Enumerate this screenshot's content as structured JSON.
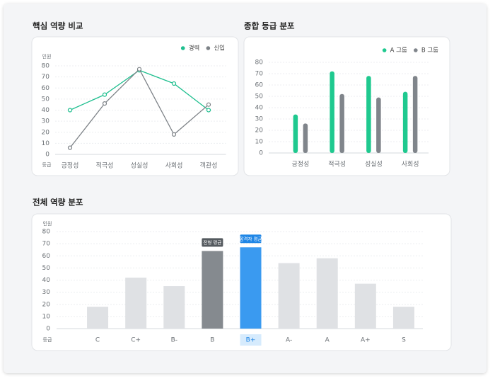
{
  "chart_data": [
    {
      "type": "line",
      "title": "핵심 역량 비교",
      "y_label": "인원",
      "x_label": "등급",
      "categories": [
        "긍정성",
        "적극성",
        "성실성",
        "사회성",
        "객관성"
      ],
      "series": [
        {
          "name": "경력",
          "color": "#1fbf8f",
          "values": [
            40,
            54,
            76,
            64,
            40
          ]
        },
        {
          "name": "신입",
          "color": "#7d8287",
          "values": [
            6,
            46,
            77,
            18,
            45
          ]
        }
      ],
      "ylim": [
        0,
        80
      ],
      "yticks": [
        0,
        10,
        20,
        30,
        40,
        50,
        60,
        70,
        80
      ],
      "grid": true,
      "legend": "top-right"
    },
    {
      "type": "bar",
      "title": "종합 등급 분포",
      "categories": [
        "긍정성",
        "적극성",
        "성실성",
        "사회성"
      ],
      "series": [
        {
          "name": "A 그룹",
          "color": "#1fc98f",
          "values": [
            34,
            72,
            68,
            54
          ]
        },
        {
          "name": "B 그룹",
          "color": "#80858b",
          "values": [
            26,
            52,
            49,
            68
          ]
        }
      ],
      "ylim": [
        0,
        80
      ],
      "yticks": [
        0,
        10,
        20,
        30,
        40,
        50,
        60,
        70,
        80
      ],
      "grid": true,
      "legend": "top-right"
    },
    {
      "type": "bar",
      "title": "전체 역량 분포",
      "y_label": "인원",
      "x_label": "등급",
      "categories": [
        "C",
        "C+",
        "B-",
        "B",
        "B+",
        "A-",
        "A",
        "A+",
        "S"
      ],
      "values": [
        18,
        42,
        35,
        64,
        67,
        54,
        58,
        37,
        18
      ],
      "colors": [
        "#dfe1e4",
        "#dfe1e4",
        "#dfe1e4",
        "#858a8f",
        "#3a9af0",
        "#dfe1e4",
        "#dfe1e4",
        "#dfe1e4",
        "#dfe1e4"
      ],
      "annotations": [
        {
          "index": 3,
          "text": "전형 평균",
          "color": "#555a5f"
        },
        {
          "index": 4,
          "text": "합격자 평균",
          "color": "#1f86e6"
        }
      ],
      "highlight_index": 4,
      "ylim": [
        0,
        80
      ],
      "yticks": [
        0,
        10,
        20,
        30,
        40,
        50,
        60,
        70,
        80
      ],
      "grid": true
    }
  ]
}
